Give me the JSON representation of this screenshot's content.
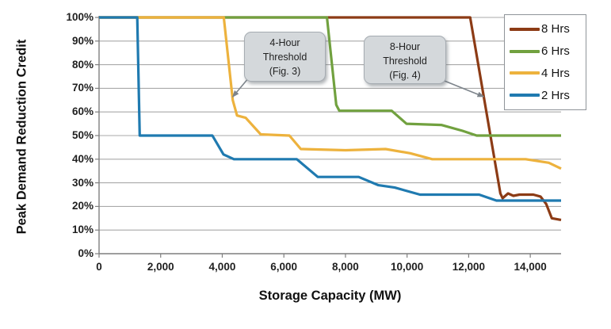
{
  "chart_data": {
    "type": "line",
    "title": "",
    "ylabel": "Peak Demand Reduction Credit",
    "xlabel": "Storage Capacity (MW)",
    "xlim": [
      0,
      15000
    ],
    "ylim": [
      0,
      100
    ],
    "grid": "horizontal-only",
    "legend_position": "top-right",
    "x_ticks": [
      0,
      2000,
      4000,
      6000,
      8000,
      10000,
      12000,
      14000
    ],
    "x_tick_labels": [
      "0",
      "2,000",
      "4,000",
      "6,000",
      "8,000",
      "10,000",
      "12,000",
      "14,000"
    ],
    "y_ticks": [
      0,
      10,
      20,
      30,
      40,
      50,
      60,
      70,
      80,
      90,
      100
    ],
    "y_tick_labels": [
      "0%",
      "10%",
      "20%",
      "30%",
      "40%",
      "50%",
      "60%",
      "70%",
      "80%",
      "90%",
      "100%"
    ],
    "series": [
      {
        "name": "8 Hrs",
        "color": "#8C3B15",
        "points": [
          [
            0,
            100
          ],
          [
            12050,
            100
          ],
          [
            13030,
            25.5
          ],
          [
            13100,
            23.5
          ],
          [
            13280,
            25.5
          ],
          [
            13450,
            24.5
          ],
          [
            13650,
            25
          ],
          [
            14100,
            25
          ],
          [
            14330,
            24.2
          ],
          [
            14520,
            21
          ],
          [
            14700,
            15
          ],
          [
            15000,
            14.3
          ]
        ]
      },
      {
        "name": "6 Hrs",
        "color": "#71A13F",
        "points": [
          [
            0,
            100
          ],
          [
            7400,
            100
          ],
          [
            7700,
            63
          ],
          [
            7800,
            60.5
          ],
          [
            9500,
            60.5
          ],
          [
            9980,
            55
          ],
          [
            11110,
            54.5
          ],
          [
            11800,
            52
          ],
          [
            12260,
            50
          ],
          [
            15000,
            50
          ]
        ]
      },
      {
        "name": "4 Hrs",
        "color": "#EDB23D",
        "points": [
          [
            0,
            100
          ],
          [
            4050,
            100
          ],
          [
            4340,
            65
          ],
          [
            4480,
            58.5
          ],
          [
            4760,
            57.5
          ],
          [
            5250,
            50.5
          ],
          [
            6180,
            50
          ],
          [
            6550,
            44.3
          ],
          [
            8000,
            43.8
          ],
          [
            9300,
            44.3
          ],
          [
            10100,
            42.5
          ],
          [
            10820,
            40
          ],
          [
            13850,
            40
          ],
          [
            14600,
            38.5
          ],
          [
            15000,
            36
          ]
        ]
      },
      {
        "name": "2 Hrs",
        "color": "#1F7AB0",
        "points": [
          [
            0,
            100
          ],
          [
            1240,
            100
          ],
          [
            1320,
            50
          ],
          [
            3680,
            50
          ],
          [
            4040,
            42
          ],
          [
            4380,
            40
          ],
          [
            6420,
            40
          ],
          [
            7100,
            32.5
          ],
          [
            8430,
            32.5
          ],
          [
            9070,
            29
          ],
          [
            9600,
            28
          ],
          [
            10420,
            25
          ],
          [
            12340,
            25
          ],
          [
            12900,
            22.5
          ],
          [
            15000,
            22.5
          ]
        ]
      }
    ],
    "annotations": [
      {
        "lines": [
          "4-Hour",
          "Threshold",
          "(Fig. 3)"
        ],
        "arrow": {
          "from_mw": 4830,
          "from_pct": 74,
          "to_mw": 4345,
          "to_pct": 66.5
        }
      },
      {
        "lines": [
          "8-Hour",
          "Threshold",
          "(Fig. 4)"
        ],
        "arrow": {
          "from_mw": 11150,
          "from_pct": 73.5,
          "to_mw": 12480,
          "to_pct": 66.5
        }
      }
    ],
    "style_colors": {
      "grid": "#a9a9a9",
      "axis": "#7f7f7f",
      "annotation_fill": "#d4d8db",
      "annotation_border": "#a6acb2",
      "arrow": "#7d848b",
      "background": "#ffffff"
    }
  }
}
